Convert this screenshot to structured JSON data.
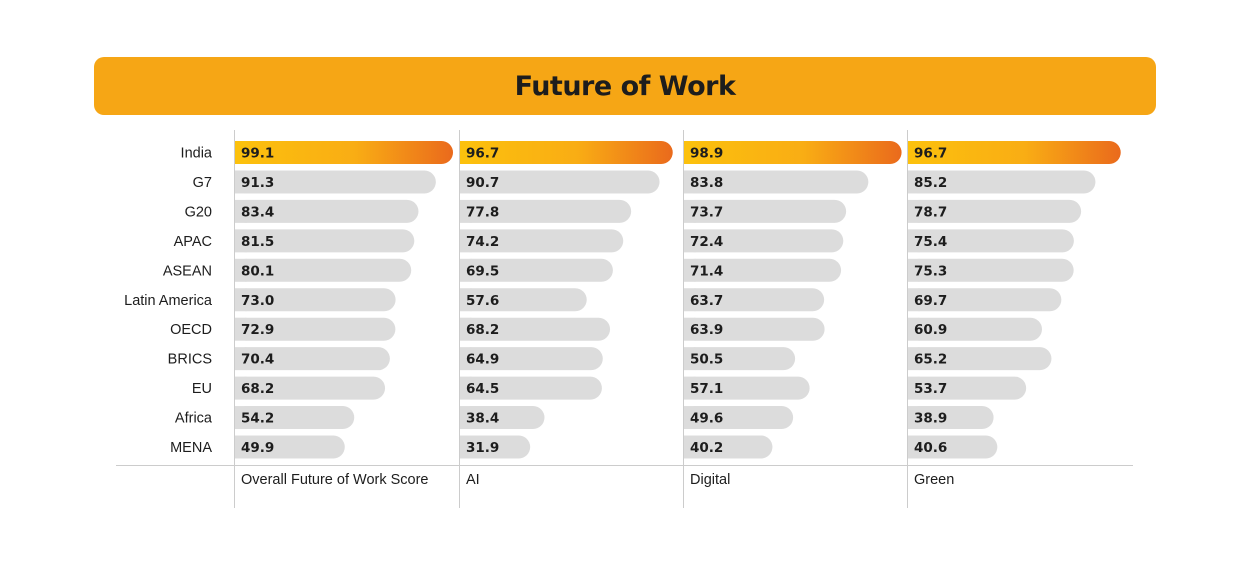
{
  "title": "Future of Work",
  "colors": {
    "banner": "#f6a615",
    "bar_default": "#dcdcdc",
    "bar_highlight_start": "#fcc10d",
    "bar_highlight_end": "#ea6a1c",
    "text": "#1d1d1d",
    "axis_line": "#cccccc"
  },
  "chart_data": {
    "type": "bar",
    "orientation": "horizontal",
    "title": "Future of Work",
    "categories": [
      "India",
      "G7",
      "G20",
      "APAC",
      "ASEAN",
      "Latin America",
      "OECD",
      "BRICS",
      "EU",
      "Africa",
      "MENA"
    ],
    "highlight_category": "India",
    "xlim": [
      0,
      100
    ],
    "panels": [
      {
        "label": "Overall Future of Work Score",
        "values": [
          99.1,
          91.3,
          83.4,
          81.5,
          80.1,
          73.0,
          72.9,
          70.4,
          68.2,
          54.2,
          49.9
        ]
      },
      {
        "label": "AI",
        "values": [
          96.7,
          90.7,
          77.8,
          74.2,
          69.5,
          57.6,
          68.2,
          64.9,
          64.5,
          38.4,
          31.9
        ]
      },
      {
        "label": "Digital",
        "values": [
          98.9,
          83.8,
          73.7,
          72.4,
          71.4,
          63.7,
          63.9,
          50.5,
          57.1,
          49.6,
          40.2
        ]
      },
      {
        "label": "Green",
        "values": [
          96.7,
          85.2,
          78.7,
          75.4,
          75.3,
          69.7,
          60.9,
          65.2,
          53.7,
          38.9,
          40.6
        ]
      }
    ]
  }
}
